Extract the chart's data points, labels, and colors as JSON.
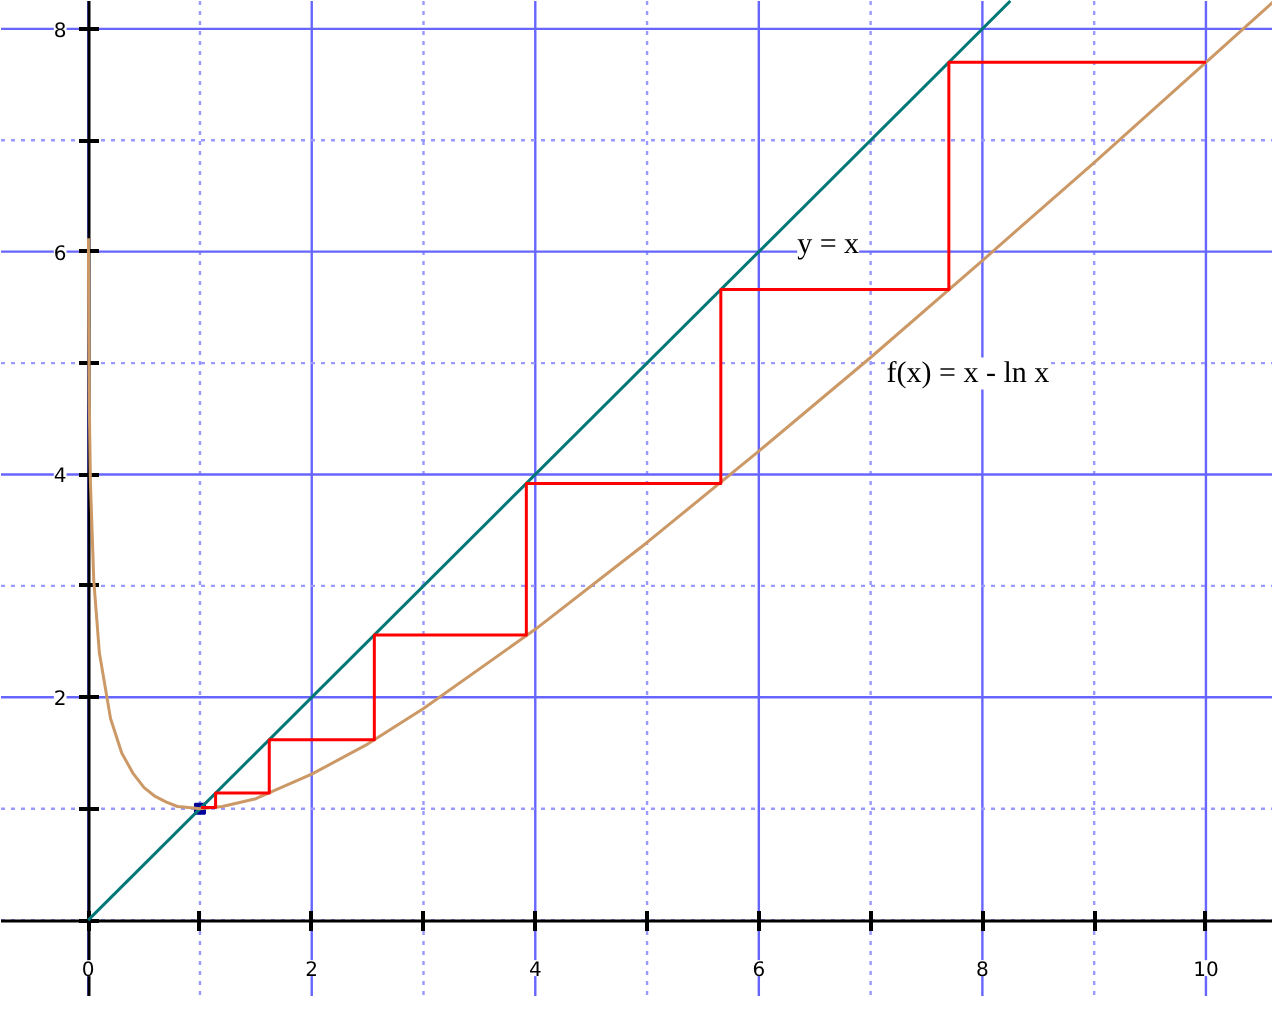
{
  "chart_data": {
    "type": "line",
    "xlim": [
      -0.78,
      10.6
    ],
    "ylim": [
      -0.69,
      8.25
    ],
    "xticks": [
      {
        "value": 0,
        "label": "0"
      },
      {
        "value": 1,
        "label": null
      },
      2,
      {
        "value": 3,
        "label": null
      },
      4,
      {
        "value": 5,
        "label": null
      },
      6,
      {
        "value": 7,
        "label": null
      },
      8,
      {
        "value": 9,
        "label": null
      },
      10
    ],
    "yticks": [
      {
        "value": 0,
        "label": null
      },
      {
        "value": 1,
        "label": null
      },
      2,
      {
        "value": 3,
        "label": null
      },
      4,
      {
        "value": 5,
        "label": null
      },
      6,
      {
        "value": 7,
        "label": null
      },
      8
    ],
    "grid": true,
    "line_style": "solid",
    "series": [
      {
        "color": "#007777",
        "x": [
          0,
          8.25
        ],
        "values": [
          0,
          8.25
        ]
      },
      {
        "color": "#cc9966",
        "x": [
          0.0022,
          0.005,
          0.01,
          0.02,
          0.05,
          0.1,
          0.2,
          0.3,
          0.4,
          0.5,
          0.6,
          0.7,
          0.8,
          0.9,
          1,
          1.2,
          1.5,
          2,
          2.5,
          3,
          4,
          5,
          6,
          7,
          8,
          9,
          10,
          10.6
        ],
        "values": [
          6.12,
          5.3,
          4.62,
          3.93,
          3.05,
          2.4,
          1.81,
          1.5,
          1.32,
          1.19,
          1.11,
          1.06,
          1.02,
          1.01,
          1,
          1.02,
          1.09,
          1.31,
          1.58,
          1.9,
          2.61,
          3.39,
          4.21,
          5.05,
          5.92,
          6.8,
          7.7,
          8.24
        ]
      },
      {
        "color": "#ff0000",
        "x": [
          10,
          7.7,
          7.7,
          5.66,
          5.66,
          3.92,
          3.92,
          2.56,
          2.56,
          1.62,
          1.62,
          1.14,
          1.14,
          1.01
        ],
        "values": [
          7.7,
          7.7,
          5.66,
          5.66,
          3.92,
          3.92,
          2.56,
          2.56,
          1.62,
          1.62,
          1.14,
          1.14,
          1.01,
          1.01
        ]
      },
      {
        "type": "scatter",
        "color": "#000099",
        "marker": "square",
        "x": [
          1
        ],
        "values": [
          1
        ]
      }
    ],
    "annotations": [
      {
        "text": "y = x",
        "x": 6.2,
        "y": 6.2
      },
      {
        "text": "f(x) = x - ln x",
        "x": 7,
        "y": 5.05
      }
    ]
  }
}
